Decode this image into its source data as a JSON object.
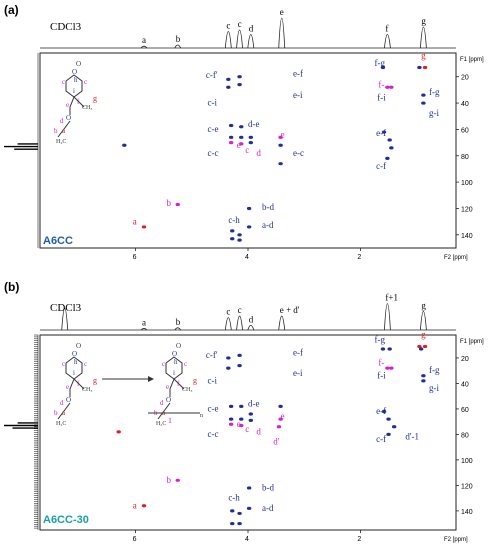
{
  "colors": {
    "blue": "#1f2d9e",
    "magenta": "#d81fd0",
    "red": "#e02020",
    "sample_a": "#1f5fa8",
    "sample_b": "#17a1a8",
    "black": "#000000"
  },
  "chart_data": [
    {
      "type": "scatter",
      "panel_label": "(a)",
      "sample": "A6CC",
      "solvent": "CDCl3",
      "xlabel": "F2 [ppm]",
      "ylabel": "F1 [ppm]",
      "xlim": [
        7.7,
        0.3
      ],
      "ylim": [
        150,
        2
      ],
      "x_ticks": [
        6,
        4,
        2
      ],
      "y_ticks": [
        20,
        40,
        60,
        80,
        100,
        120,
        140
      ],
      "proton_peaks": [
        {
          "label": "CDCl3",
          "x": 7.26,
          "h": 0.0
        },
        {
          "label": "a",
          "x": 5.85,
          "h": 0.06
        },
        {
          "label": "b",
          "x": 5.25,
          "h": 0.1
        },
        {
          "label": "c",
          "x": 4.35,
          "h": 0.55
        },
        {
          "label": "c",
          "x": 4.15,
          "h": 0.6
        },
        {
          "label": "d",
          "x": 3.95,
          "h": 0.45
        },
        {
          "label": "e",
          "x": 3.4,
          "h": 1.0
        },
        {
          "label": "f",
          "x": 1.52,
          "h": 0.45
        },
        {
          "label": "g",
          "x": 0.88,
          "h": 0.7
        }
      ],
      "carbon_peaks": [
        {
          "y": 71,
          "h": 0.6
        },
        {
          "y": 73,
          "h": 1.0
        },
        {
          "y": 75,
          "h": 0.7
        }
      ],
      "cross_peaks": [
        {
          "x": 5.85,
          "y": 134,
          "color": "red"
        },
        {
          "x": 5.25,
          "y": 117,
          "color": "magenta"
        },
        {
          "x": 4.35,
          "y": 22,
          "color": "blue"
        },
        {
          "x": 4.15,
          "y": 20,
          "color": "blue"
        },
        {
          "x": 4.35,
          "y": 28,
          "color": "blue"
        },
        {
          "x": 4.15,
          "y": 26,
          "color": "blue"
        },
        {
          "x": 4.3,
          "y": 57,
          "color": "blue"
        },
        {
          "x": 4.12,
          "y": 58,
          "color": "blue"
        },
        {
          "x": 4.3,
          "y": 66,
          "color": "blue"
        },
        {
          "x": 4.12,
          "y": 66,
          "color": "blue"
        },
        {
          "x": 4.3,
          "y": 70,
          "color": "magenta"
        },
        {
          "x": 4.12,
          "y": 71,
          "color": "magenta"
        },
        {
          "x": 3.95,
          "y": 66,
          "color": "blue"
        },
        {
          "x": 3.95,
          "y": 70,
          "color": "blue"
        },
        {
          "x": 6.2,
          "y": 72,
          "color": "blue"
        },
        {
          "x": 3.42,
          "y": 66,
          "color": "magenta"
        },
        {
          "x": 3.42,
          "y": 72,
          "color": "blue"
        },
        {
          "x": 3.42,
          "y": 86,
          "color": "blue"
        },
        {
          "x": 3.98,
          "y": 120,
          "color": "blue"
        },
        {
          "x": 3.98,
          "y": 134,
          "color": "blue"
        },
        {
          "x": 4.28,
          "y": 137,
          "color": "blue"
        },
        {
          "x": 4.15,
          "y": 140,
          "color": "blue"
        },
        {
          "x": 4.28,
          "y": 143,
          "color": "blue"
        },
        {
          "x": 4.15,
          "y": 144,
          "color": "blue"
        },
        {
          "x": 1.6,
          "y": 13,
          "color": "blue"
        },
        {
          "x": 0.95,
          "y": 13,
          "color": "blue"
        },
        {
          "x": 0.85,
          "y": 13,
          "color": "red"
        },
        {
          "x": 1.52,
          "y": 28,
          "color": "magenta"
        },
        {
          "x": 1.45,
          "y": 28,
          "color": "magenta"
        },
        {
          "x": 0.88,
          "y": 34,
          "color": "blue"
        },
        {
          "x": 0.88,
          "y": 40,
          "color": "blue"
        },
        {
          "x": 1.58,
          "y": 62,
          "color": "blue"
        },
        {
          "x": 1.48,
          "y": 68,
          "color": "blue"
        },
        {
          "x": 1.45,
          "y": 74,
          "color": "blue"
        },
        {
          "x": 1.52,
          "y": 82,
          "color": "blue"
        }
      ],
      "annotations": [
        {
          "text": "f-g",
          "x": 1.75,
          "y": 12,
          "color": "blue"
        },
        {
          "text": "g",
          "x": 0.92,
          "y": 6,
          "color": "red"
        },
        {
          "text": "c-f'",
          "x": 4.75,
          "y": 21,
          "color": "blue"
        },
        {
          "text": "e-f",
          "x": 3.2,
          "y": 20,
          "color": "blue"
        },
        {
          "text": "f-",
          "x": 1.68,
          "y": 28,
          "color": "magenta"
        },
        {
          "text": "f-i",
          "x": 1.7,
          "y": 38,
          "color": "blue"
        },
        {
          "text": "f-g",
          "x": 0.78,
          "y": 34,
          "color": "blue"
        },
        {
          "text": "c-i",
          "x": 4.72,
          "y": 42,
          "color": "blue"
        },
        {
          "text": "e-i",
          "x": 3.2,
          "y": 36,
          "color": "blue"
        },
        {
          "text": "g-i",
          "x": 0.78,
          "y": 50,
          "color": "blue"
        },
        {
          "text": "d-e",
          "x": 4.0,
          "y": 58,
          "color": "blue"
        },
        {
          "text": "c-e",
          "x": 4.72,
          "y": 62,
          "color": "blue"
        },
        {
          "text": "e-f",
          "x": 1.72,
          "y": 65,
          "color": "blue"
        },
        {
          "text": "e",
          "x": 3.42,
          "y": 66,
          "color": "magenta"
        },
        {
          "text": "e",
          "x": 4.2,
          "y": 74,
          "color": "magenta"
        },
        {
          "text": "c",
          "x": 4.05,
          "y": 78,
          "color": "magenta"
        },
        {
          "text": "d",
          "x": 3.85,
          "y": 80,
          "color": "magenta"
        },
        {
          "text": "e-c",
          "x": 3.2,
          "y": 80,
          "color": "blue"
        },
        {
          "text": "c-c",
          "x": 4.72,
          "y": 80,
          "color": "blue"
        },
        {
          "text": "c-f",
          "x": 1.72,
          "y": 90,
          "color": "blue"
        },
        {
          "text": "b",
          "x": 5.45,
          "y": 118,
          "color": "magenta"
        },
        {
          "text": "b-d",
          "x": 3.75,
          "y": 121,
          "color": "blue"
        },
        {
          "text": "c-h",
          "x": 4.35,
          "y": 131,
          "color": "blue"
        },
        {
          "text": "a",
          "x": 6.05,
          "y": 132,
          "color": "red"
        },
        {
          "text": "a-d",
          "x": 3.75,
          "y": 135,
          "color": "blue"
        }
      ]
    },
    {
      "type": "scatter",
      "panel_label": "(b)",
      "sample": "A6CC-30",
      "solvent": "CDCl3",
      "xlabel": "F2 [ppm]",
      "ylabel": "F1 [ppm]",
      "xlim": [
        7.7,
        0.3
      ],
      "ylim": [
        155,
        2
      ],
      "x_ticks": [
        6,
        4,
        2
      ],
      "y_ticks": [
        20,
        40,
        60,
        80,
        100,
        120,
        140
      ],
      "proton_peaks": [
        {
          "label": "CDCl3",
          "x": 7.26,
          "h": 0.7
        },
        {
          "label": "a",
          "x": 5.85,
          "h": 0.05
        },
        {
          "label": "b",
          "x": 5.25,
          "h": 0.07
        },
        {
          "label": "c",
          "x": 4.35,
          "h": 0.4
        },
        {
          "label": "c",
          "x": 4.15,
          "h": 0.45
        },
        {
          "label": "d",
          "x": 3.95,
          "h": 0.15
        },
        {
          "label": "e + d'",
          "x": 3.4,
          "h": 0.45
        },
        {
          "label": "f+1",
          "x": 1.52,
          "h": 0.85
        },
        {
          "label": "g",
          "x": 0.88,
          "h": 0.6
        }
      ],
      "carbon_peaks": [
        {
          "y": 71,
          "h": 0.6
        },
        {
          "y": 73,
          "h": 1.0
        },
        {
          "y": 75,
          "h": 0.75
        }
      ],
      "cross_peaks": [
        {
          "x": 5.85,
          "y": 136,
          "color": "red"
        },
        {
          "x": 5.25,
          "y": 116,
          "color": "magenta"
        },
        {
          "x": 6.3,
          "y": 78,
          "color": "red"
        },
        {
          "x": 4.35,
          "y": 20,
          "color": "blue"
        },
        {
          "x": 4.15,
          "y": 18,
          "color": "blue"
        },
        {
          "x": 4.35,
          "y": 28,
          "color": "blue"
        },
        {
          "x": 4.15,
          "y": 26,
          "color": "blue"
        },
        {
          "x": 4.3,
          "y": 58,
          "color": "blue"
        },
        {
          "x": 4.12,
          "y": 58,
          "color": "blue"
        },
        {
          "x": 4.3,
          "y": 68,
          "color": "blue"
        },
        {
          "x": 4.12,
          "y": 68,
          "color": "blue"
        },
        {
          "x": 4.3,
          "y": 72,
          "color": "magenta"
        },
        {
          "x": 4.12,
          "y": 73,
          "color": "magenta"
        },
        {
          "x": 3.95,
          "y": 64,
          "color": "blue"
        },
        {
          "x": 3.95,
          "y": 69,
          "color": "blue"
        },
        {
          "x": 3.42,
          "y": 68,
          "color": "magenta"
        },
        {
          "x": 3.45,
          "y": 74,
          "color": "magenta"
        },
        {
          "x": 3.42,
          "y": 58,
          "color": "blue"
        },
        {
          "x": 3.98,
          "y": 122,
          "color": "blue"
        },
        {
          "x": 3.98,
          "y": 138,
          "color": "blue"
        },
        {
          "x": 4.28,
          "y": 140,
          "color": "blue"
        },
        {
          "x": 4.15,
          "y": 142,
          "color": "blue"
        },
        {
          "x": 4.28,
          "y": 150,
          "color": "blue"
        },
        {
          "x": 4.15,
          "y": 150,
          "color": "blue"
        },
        {
          "x": 1.6,
          "y": 13,
          "color": "blue"
        },
        {
          "x": 1.48,
          "y": 13,
          "color": "blue"
        },
        {
          "x": 0.95,
          "y": 11,
          "color": "red"
        },
        {
          "x": 0.85,
          "y": 11,
          "color": "red"
        },
        {
          "x": 0.92,
          "y": 13,
          "color": "blue"
        },
        {
          "x": 1.52,
          "y": 28,
          "color": "magenta"
        },
        {
          "x": 1.45,
          "y": 28,
          "color": "magenta"
        },
        {
          "x": 0.88,
          "y": 34,
          "color": "blue"
        },
        {
          "x": 0.88,
          "y": 38,
          "color": "blue"
        },
        {
          "x": 1.58,
          "y": 62,
          "color": "blue"
        },
        {
          "x": 1.5,
          "y": 68,
          "color": "blue"
        },
        {
          "x": 1.4,
          "y": 74,
          "color": "blue"
        },
        {
          "x": 1.5,
          "y": 80,
          "color": "blue"
        }
      ],
      "annotations": [
        {
          "text": "f-g",
          "x": 1.75,
          "y": 8,
          "color": "blue"
        },
        {
          "text": "g",
          "x": 0.92,
          "y": 4,
          "color": "red"
        },
        {
          "text": "c-f'",
          "x": 4.75,
          "y": 20,
          "color": "blue"
        },
        {
          "text": "e-f",
          "x": 3.2,
          "y": 18,
          "color": "blue"
        },
        {
          "text": "f-",
          "x": 1.68,
          "y": 26,
          "color": "magenta"
        },
        {
          "text": "f-i",
          "x": 1.7,
          "y": 36,
          "color": "blue"
        },
        {
          "text": "f-g",
          "x": 0.78,
          "y": 32,
          "color": "blue"
        },
        {
          "text": "c-i",
          "x": 4.72,
          "y": 40,
          "color": "blue"
        },
        {
          "text": "e-i",
          "x": 3.2,
          "y": 34,
          "color": "blue"
        },
        {
          "text": "g-i",
          "x": 0.78,
          "y": 46,
          "color": "blue"
        },
        {
          "text": "d-e",
          "x": 4.0,
          "y": 58,
          "color": "blue"
        },
        {
          "text": "c-e",
          "x": 4.72,
          "y": 62,
          "color": "blue"
        },
        {
          "text": "e-f",
          "x": 1.72,
          "y": 64,
          "color": "blue"
        },
        {
          "text": "e",
          "x": 3.42,
          "y": 68,
          "color": "magenta"
        },
        {
          "text": "e",
          "x": 4.2,
          "y": 74,
          "color": "magenta"
        },
        {
          "text": "c",
          "x": 4.05,
          "y": 78,
          "color": "magenta"
        },
        {
          "text": "d",
          "x": 3.85,
          "y": 80,
          "color": "magenta"
        },
        {
          "text": "c-c",
          "x": 4.72,
          "y": 82,
          "color": "blue"
        },
        {
          "text": "c-f",
          "x": 1.72,
          "y": 86,
          "color": "blue"
        },
        {
          "text": "d'-1",
          "x": 1.2,
          "y": 84,
          "color": "blue"
        },
        {
          "text": "d'",
          "x": 3.55,
          "y": 88,
          "color": "magenta"
        },
        {
          "text": "b",
          "x": 5.45,
          "y": 118,
          "color": "magenta"
        },
        {
          "text": "b-d",
          "x": 3.75,
          "y": 124,
          "color": "blue"
        },
        {
          "text": "c-h",
          "x": 4.35,
          "y": 132,
          "color": "blue"
        },
        {
          "text": "a",
          "x": 6.05,
          "y": 138,
          "color": "red"
        },
        {
          "text": "a-d",
          "x": 3.75,
          "y": 140,
          "color": "blue"
        }
      ]
    }
  ],
  "structure_labels": {
    "o1": "O",
    "o2": "O",
    "o3": "O",
    "o4": "O",
    "h": "h",
    "c1": "c",
    "c2": "c",
    "i": "i",
    "f": "f",
    "e": "e",
    "g": "g",
    "ch3": "CH₃",
    "d": "d",
    "b": "b",
    "a": "a",
    "h2c": "H₂C",
    "poly_n": "n",
    "poly_1": "1"
  }
}
